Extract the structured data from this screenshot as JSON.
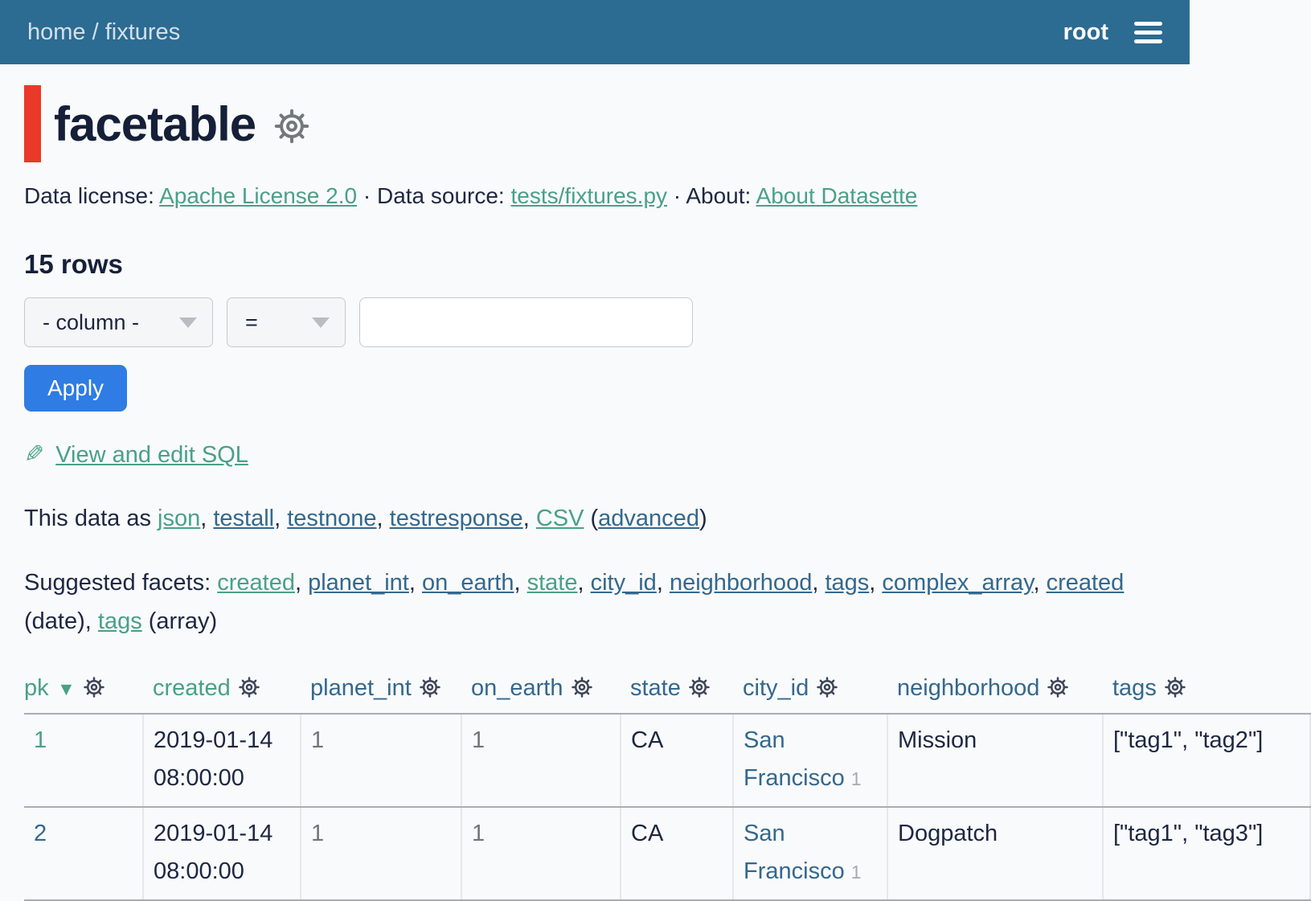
{
  "nav": {
    "breadcrumb_home": "home",
    "breadcrumb_sep": " / ",
    "breadcrumb_table": "fixtures",
    "user": "root"
  },
  "header": {
    "title": "facetable"
  },
  "metadata": {
    "license_label": "Data license:",
    "license": "Apache License 2.0",
    "dot": "·",
    "source_label": "Data source:",
    "source": "tests/fixtures.py",
    "about_label": "About:",
    "about": "About Datasette"
  },
  "rows_count": "15 rows",
  "filters": {
    "column_select": "- column -",
    "op_select": "=",
    "value": "",
    "apply_label": "Apply"
  },
  "sql_link": {
    "icon": "✎",
    "label": "View and edit SQL"
  },
  "export": {
    "prefix": "This data as",
    "separator": ", ",
    "links": [
      {
        "label": "json",
        "style": "green"
      },
      {
        "label": "testall",
        "style": "blue"
      },
      {
        "label": "testnone",
        "style": "blue"
      },
      {
        "label": "testresponse",
        "style": "blue"
      },
      {
        "label": "CSV",
        "style": "green"
      }
    ],
    "advanced_open": " (",
    "advanced": "advanced",
    "advanced_style": "blue",
    "advanced_close": ")"
  },
  "facets": {
    "prefix": "Suggested facets:",
    "separator": ", ",
    "items": [
      {
        "label": "created",
        "style": "green",
        "suffix": ""
      },
      {
        "label": "planet_int",
        "style": "blue",
        "suffix": ""
      },
      {
        "label": "on_earth",
        "style": "blue",
        "suffix": ""
      },
      {
        "label": "state",
        "style": "green",
        "suffix": ""
      },
      {
        "label": "city_id",
        "style": "blue",
        "suffix": ""
      },
      {
        "label": "neighborhood",
        "style": "blue",
        "suffix": ""
      },
      {
        "label": "tags",
        "style": "blue",
        "suffix": ""
      },
      {
        "label": "complex_array",
        "style": "blue",
        "suffix": ""
      },
      {
        "label": "created",
        "style": "blue",
        "suffix": " (date)"
      },
      {
        "label": "tags",
        "style": "green",
        "suffix": " (array)"
      }
    ]
  },
  "table": {
    "sort_glyph": "▼",
    "headers": [
      {
        "label": "pk",
        "style": "green",
        "sorted": "desc"
      },
      {
        "label": "created",
        "style": "green"
      },
      {
        "label": "planet_int",
        "style": "blue"
      },
      {
        "label": "on_earth",
        "style": "blue"
      },
      {
        "label": "state",
        "style": "blue"
      },
      {
        "label": "city_id",
        "style": "blue"
      },
      {
        "label": "neighborhood",
        "style": "blue"
      },
      {
        "label": "tags",
        "style": "blue"
      }
    ],
    "rows": [
      [
        {
          "col": "pk",
          "text": "1",
          "style": "link-green"
        },
        {
          "col": "created",
          "text": "2019-01-14 08:00:00",
          "style": "dark"
        },
        {
          "col": "planet_int",
          "text": "1",
          "style": "gray"
        },
        {
          "col": "on_earth",
          "text": "1",
          "style": "gray"
        },
        {
          "col": "state",
          "text": "CA",
          "style": "dark"
        },
        {
          "col": "city_id",
          "text": "San Francisco",
          "style": "link-blue",
          "badge": "1"
        },
        {
          "col": "neighborhood",
          "text": "Mission",
          "style": "dark"
        },
        {
          "col": "tags",
          "text": "[\"tag1\", \"tag2\"]",
          "style": "dark"
        }
      ],
      [
        {
          "col": "pk",
          "text": "2",
          "style": "link-blue"
        },
        {
          "col": "created",
          "text": "2019-01-14 08:00:00",
          "style": "dark"
        },
        {
          "col": "planet_int",
          "text": "1",
          "style": "gray"
        },
        {
          "col": "on_earth",
          "text": "1",
          "style": "gray"
        },
        {
          "col": "state",
          "text": "CA",
          "style": "dark"
        },
        {
          "col": "city_id",
          "text": "San Francisco",
          "style": "link-blue",
          "badge": "1"
        },
        {
          "col": "neighborhood",
          "text": "Dogpatch",
          "style": "dark"
        },
        {
          "col": "tags",
          "text": "[\"tag1\", \"tag3\"]",
          "style": "dark"
        }
      ]
    ]
  }
}
